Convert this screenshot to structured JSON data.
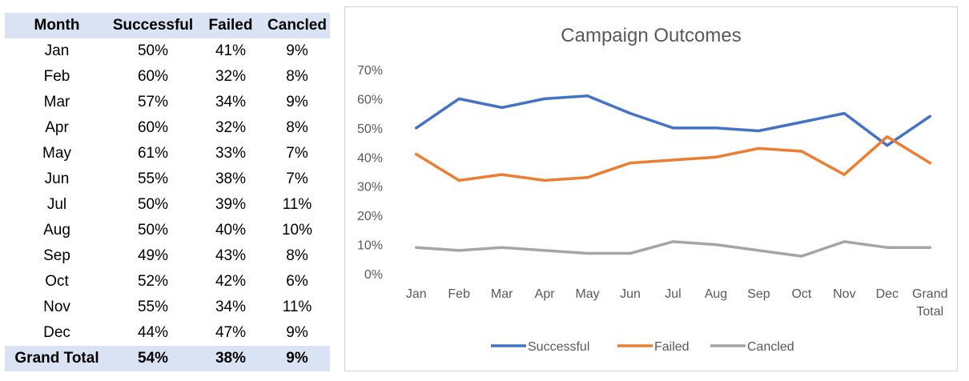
{
  "table": {
    "headers": [
      "Month",
      "Successful",
      "Failed",
      "Cancled"
    ],
    "rows": [
      [
        "Jan",
        "50%",
        "41%",
        "9%"
      ],
      [
        "Feb",
        "60%",
        "32%",
        "8%"
      ],
      [
        "Mar",
        "57%",
        "34%",
        "9%"
      ],
      [
        "Apr",
        "60%",
        "32%",
        "8%"
      ],
      [
        "May",
        "61%",
        "33%",
        "7%"
      ],
      [
        "Jun",
        "55%",
        "38%",
        "7%"
      ],
      [
        "Jul",
        "50%",
        "39%",
        "11%"
      ],
      [
        "Aug",
        "50%",
        "40%",
        "10%"
      ],
      [
        "Sep",
        "49%",
        "43%",
        "8%"
      ],
      [
        "Oct",
        "52%",
        "42%",
        "6%"
      ],
      [
        "Nov",
        "55%",
        "34%",
        "11%"
      ],
      [
        "Dec",
        "44%",
        "47%",
        "9%"
      ]
    ],
    "total": [
      "Grand Total",
      "54%",
      "38%",
      "9%"
    ],
    "header_bg": "#dae3f3"
  },
  "chart_data": {
    "type": "line",
    "title": "Campaign Outcomes",
    "categories": [
      "Jan",
      "Feb",
      "Mar",
      "Apr",
      "May",
      "Jun",
      "Jul",
      "Aug",
      "Sep",
      "Oct",
      "Nov",
      "Dec",
      "Grand Total"
    ],
    "series": [
      {
        "name": "Successful",
        "color": "#4472c4",
        "values": [
          50,
          60,
          57,
          60,
          61,
          55,
          50,
          50,
          49,
          52,
          55,
          44,
          54
        ]
      },
      {
        "name": "Failed",
        "color": "#ed7d31",
        "values": [
          41,
          32,
          34,
          32,
          33,
          38,
          39,
          40,
          43,
          42,
          34,
          47,
          38
        ]
      },
      {
        "name": "Cancled",
        "color": "#a5a5a5",
        "values": [
          9,
          8,
          9,
          8,
          7,
          7,
          11,
          10,
          8,
          6,
          11,
          9,
          9
        ]
      }
    ],
    "yticks": [
      "0%",
      "10%",
      "20%",
      "30%",
      "40%",
      "50%",
      "60%",
      "70%"
    ],
    "ylim": [
      0,
      70
    ],
    "grid": false,
    "legend_position": "bottom"
  }
}
